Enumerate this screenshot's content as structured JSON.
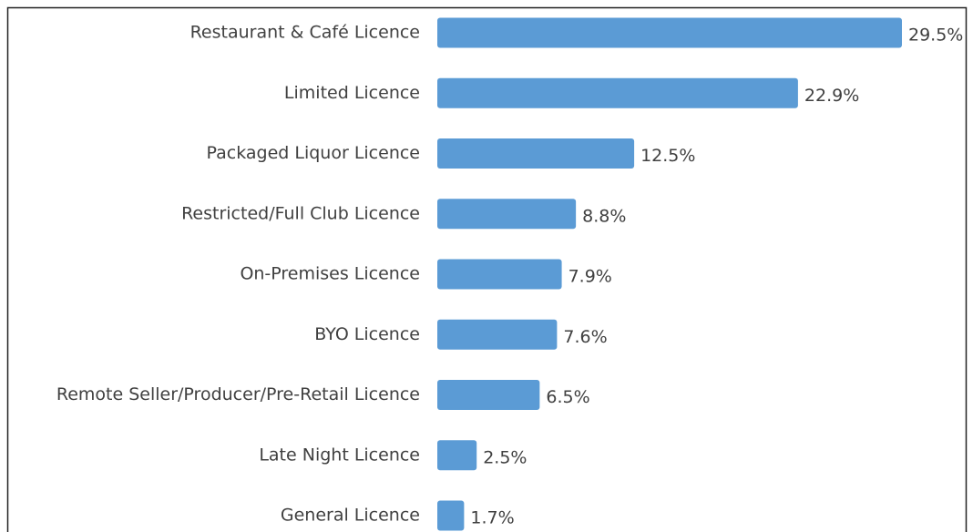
{
  "chart_data": {
    "type": "bar",
    "orientation": "horizontal",
    "categories": [
      "Restaurant & Café Licence",
      "Limited Licence",
      "Packaged Liquor Licence",
      "Restricted/Full Club Licence",
      "On-Premises Licence",
      "BYO Licence",
      "Remote Seller/Producer/Pre-Retail Licence",
      "Late Night Licence",
      "General Licence"
    ],
    "values": [
      29.5,
      22.9,
      12.5,
      8.8,
      7.9,
      7.6,
      6.5,
      2.5,
      1.7
    ],
    "value_labels": [
      "29.5%",
      "22.9%",
      "12.5%",
      "8.8%",
      "7.9%",
      "7.6%",
      "6.5%",
      "2.5%",
      "1.7%"
    ],
    "color": "#5b9bd5"
  }
}
